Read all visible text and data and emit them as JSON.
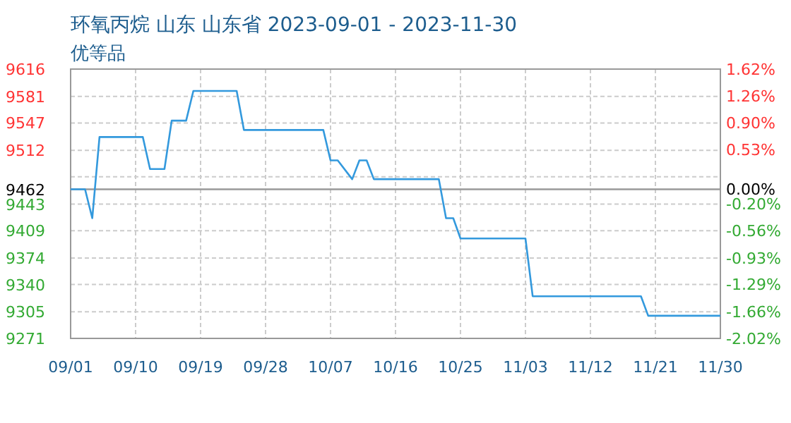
{
  "chart_data": {
    "type": "line",
    "title": "环氧丙烷 山东 山东省 2023-09-01 - 2023-11-30",
    "subtitle": "优等品",
    "x": [
      "2023-09-01",
      "2023-09-03",
      "2023-09-04",
      "2023-09-05",
      "2023-09-11",
      "2023-09-12",
      "2023-09-14",
      "2023-09-15",
      "2023-09-17",
      "2023-09-18",
      "2023-09-24",
      "2023-09-25",
      "2023-10-06",
      "2023-10-07",
      "2023-10-08",
      "2023-10-10",
      "2023-10-11",
      "2023-10-12",
      "2023-10-13",
      "2023-10-22",
      "2023-10-23",
      "2023-10-24",
      "2023-10-25",
      "2023-11-03",
      "2023-11-04",
      "2023-11-19",
      "2023-11-20",
      "2023-11-30"
    ],
    "values": [
      9462,
      9462,
      9425,
      9529,
      9529,
      9488,
      9488,
      9550,
      9550,
      9588,
      9588,
      9538,
      9538,
      9499,
      9499,
      9475,
      9499,
      9499,
      9475,
      9475,
      9425,
      9425,
      9399,
      9399,
      9325,
      9325,
      9300,
      9300
    ],
    "color": "#3399dd",
    "marker": "none",
    "line_style": "solid",
    "grid": true,
    "xlim": [
      "2023-09-01",
      "2023-11-30"
    ],
    "xticks": [
      {
        "value": "2023-09-01",
        "label": "09/01"
      },
      {
        "value": "2023-09-10",
        "label": "09/10"
      },
      {
        "value": "2023-09-19",
        "label": "09/19"
      },
      {
        "value": "2023-09-28",
        "label": "09/28"
      },
      {
        "value": "2023-10-07",
        "label": "10/07"
      },
      {
        "value": "2023-10-16",
        "label": "10/16"
      },
      {
        "value": "2023-10-25",
        "label": "10/25"
      },
      {
        "value": "2023-11-03",
        "label": "11/03"
      },
      {
        "value": "2023-11-12",
        "label": "11/12"
      },
      {
        "value": "2023-11-21",
        "label": "11/21"
      },
      {
        "value": "2023-11-30",
        "label": "11/30"
      }
    ],
    "ylim": [
      9271,
      9616
    ],
    "yticks": [
      9616,
      9581,
      9547,
      9512,
      {
        "value": 9478,
        "label": null
      },
      9462,
      9443,
      9409,
      9374,
      9340,
      9305,
      9271
    ],
    "y2lim": [
      -2.02,
      1.62
    ],
    "y2ticks": [
      {
        "value": 1.62,
        "label": "1.62%"
      },
      {
        "value": 1.26,
        "label": "1.26%"
      },
      {
        "value": 0.9,
        "label": "0.90%"
      },
      {
        "value": 0.53,
        "label": "0.53%"
      },
      {
        "value": 0,
        "label": "0.00%"
      },
      {
        "value": -0.2,
        "label": "-0.20%"
      },
      {
        "value": -0.56,
        "label": "-0.56%"
      },
      {
        "value": -0.93,
        "label": "-0.93%"
      },
      {
        "value": -1.29,
        "label": "-1.29%"
      },
      {
        "value": -1.66,
        "label": "-1.66%"
      },
      {
        "value": -2.02,
        "label": "-2.02%"
      }
    ],
    "ref_lines": [
      {
        "axis": "y",
        "value": 9462,
        "color": "#999999"
      }
    ]
  }
}
